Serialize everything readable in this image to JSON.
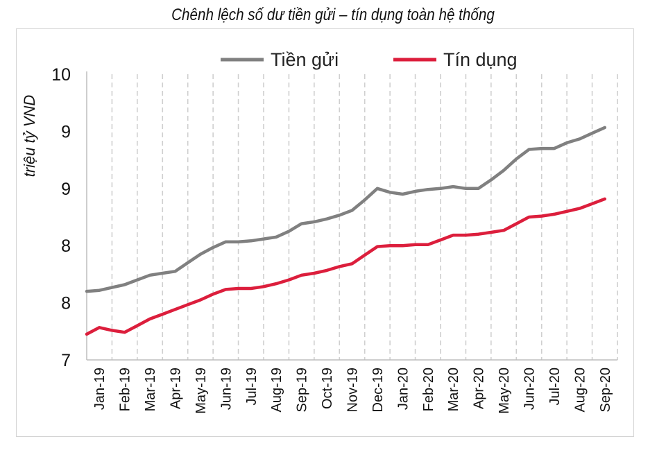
{
  "chart_data": {
    "type": "line",
    "title": "Chênh lệch số dư tiền gửi – tín dụng toàn hệ thống",
    "ylabel": "triệu tỷ VND",
    "xlabel": "",
    "y_tick_labels": [
      "7",
      "8",
      "8",
      "9",
      "9",
      "10"
    ],
    "ylim": [
      7,
      10
    ],
    "grid": "vertical dashed",
    "legend_position": "top",
    "x": [
      "Jan-19",
      "Feb-19",
      "Mar-19",
      "Apr-19",
      "May-19",
      "Jun-19",
      "Jul-19",
      "Aug-19",
      "Sep-19",
      "Oct-19",
      "Nov-19",
      "Dec-19",
      "Jan-20",
      "Feb-20",
      "Mar-20",
      "Apr-20",
      "May-20",
      "Jun-20",
      "Jul-20",
      "Aug-20",
      "Sep-20"
    ],
    "x_positions": [
      0.5,
      1.5,
      2.5,
      3.5,
      4.5,
      5.5,
      6.5,
      7.5,
      8.5,
      9.5,
      10.5,
      11.5,
      12.5,
      13.5,
      14.5,
      15.5,
      16.5,
      17.5,
      18.5,
      19.5,
      20.5
    ],
    "series": [
      {
        "name": "Tiền gửi",
        "color": "#808080",
        "x": [
          0,
          0.5,
          1,
          1.5,
          2,
          2.5,
          3,
          3.5,
          4,
          4.5,
          5,
          5.5,
          6,
          6.5,
          7,
          7.5,
          8,
          8.5,
          9,
          9.5,
          10,
          10.5,
          11,
          11.5,
          12,
          12.5,
          13,
          13.5,
          14,
          14.5,
          15,
          15.5,
          16,
          16.5,
          17,
          17.5,
          18,
          18.5,
          19,
          19.5,
          20,
          20.5
        ],
        "values": [
          7.72,
          7.73,
          7.76,
          7.79,
          7.84,
          7.89,
          7.91,
          7.93,
          8.02,
          8.11,
          8.18,
          8.24,
          8.24,
          8.25,
          8.27,
          8.29,
          8.35,
          8.43,
          8.45,
          8.48,
          8.52,
          8.57,
          8.68,
          8.8,
          8.76,
          8.74,
          8.77,
          8.79,
          8.8,
          8.82,
          8.8,
          8.8,
          8.89,
          8.99,
          9.11,
          9.21,
          9.22,
          9.22,
          9.28,
          9.32,
          9.38,
          9.44
        ]
      },
      {
        "name": "Tín dụng",
        "color": "#dc1e3c",
        "x": [
          0,
          0.5,
          1,
          1.5,
          2,
          2.5,
          3,
          3.5,
          4,
          4.5,
          5,
          5.5,
          6,
          6.5,
          7,
          7.5,
          8,
          8.5,
          9,
          9.5,
          10,
          10.5,
          11,
          11.5,
          12,
          12.5,
          13,
          13.5,
          14,
          14.5,
          15,
          15.5,
          16,
          16.5,
          17,
          17.5,
          18,
          18.5,
          19,
          19.5,
          20,
          20.5
        ],
        "values": [
          7.27,
          7.34,
          7.31,
          7.29,
          7.36,
          7.43,
          7.48,
          7.53,
          7.58,
          7.63,
          7.69,
          7.74,
          7.75,
          7.75,
          7.77,
          7.8,
          7.84,
          7.89,
          7.91,
          7.94,
          7.98,
          8.01,
          8.1,
          8.19,
          8.2,
          8.2,
          8.21,
          8.21,
          8.26,
          8.31,
          8.31,
          8.32,
          8.34,
          8.36,
          8.43,
          8.5,
          8.51,
          8.53,
          8.56,
          8.59,
          8.64,
          8.69
        ]
      }
    ]
  }
}
